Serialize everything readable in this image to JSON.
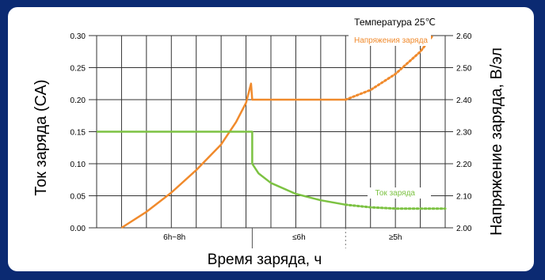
{
  "chart_data": {
    "type": "line",
    "annotation_temperature": "Температура 25℃",
    "xlabel": "Время заряда, ч",
    "ylabel_left": "Ток заряда (СА)",
    "ylabel_right": "Напряжение заряда, В/эл",
    "left_axis": {
      "ylim": [
        0,
        0.3
      ],
      "ticks": [
        "0.00",
        "0.05",
        "0.10",
        "0.15",
        "0.20",
        "0.25",
        "0.30"
      ]
    },
    "right_axis": {
      "ylim": [
        2.0,
        2.6
      ],
      "ticks": [
        "2.00",
        "2.10",
        "2.20",
        "2.30",
        "2.40",
        "2.50",
        "2.60"
      ]
    },
    "x_sections": [
      "6h~8h",
      "≤6h",
      "≥5h"
    ],
    "grid": true,
    "series": [
      {
        "name": "Напряжения заряда",
        "axis": "right",
        "color": "#f08a2c",
        "points": [
          [
            1,
            2.0
          ],
          [
            2,
            2.05
          ],
          [
            3,
            2.11
          ],
          [
            4,
            2.18
          ],
          [
            5,
            2.26
          ],
          [
            5.6,
            2.33
          ],
          [
            6,
            2.39
          ],
          [
            6.2,
            2.45
          ],
          [
            6.25,
            2.4
          ],
          [
            10,
            2.4
          ],
          [
            11,
            2.43
          ],
          [
            12,
            2.48
          ],
          [
            13,
            2.55
          ],
          [
            13.5,
            2.6
          ]
        ]
      },
      {
        "name": "Ток заряда",
        "axis": "left",
        "color": "#7cc242",
        "points": [
          [
            0,
            0.15
          ],
          [
            6.25,
            0.15
          ],
          [
            6.25,
            0.1
          ],
          [
            6.5,
            0.085
          ],
          [
            7,
            0.07
          ],
          [
            8,
            0.053
          ],
          [
            9,
            0.043
          ],
          [
            10,
            0.036
          ],
          [
            11,
            0.032
          ],
          [
            12,
            0.03
          ],
          [
            14,
            0.03
          ]
        ]
      }
    ],
    "dotted_from_x": [
      10,
      10
    ]
  }
}
